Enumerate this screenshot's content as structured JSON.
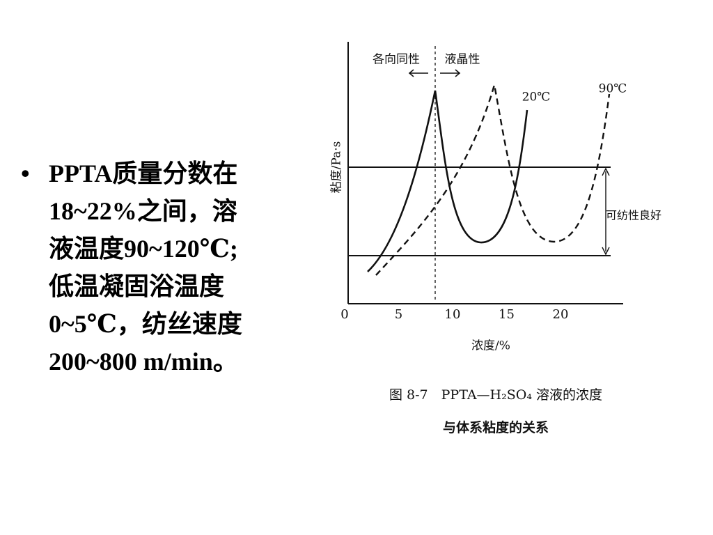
{
  "bullet": {
    "lines": [
      "PPTA质量分数在",
      "18~22%之间，溶",
      "液温度90~120℃;",
      "低温凝固浴温度",
      "0~5℃，纺丝速度",
      "200~800 m/min。"
    ]
  },
  "figure": {
    "y_label": "粘度/Pa·s",
    "x_label": "浓度/%",
    "x_ticks": [
      0,
      5,
      10,
      15,
      20
    ],
    "region_left": "各向同性",
    "region_right": "液晶性",
    "curve_labels": [
      "20℃",
      "90℃"
    ],
    "band_label": "可纺性良好",
    "caption": [
      "图 8-7　PPTA—H₂SO₄ 溶液的浓度",
      "与体系粘度的关系"
    ]
  }
}
